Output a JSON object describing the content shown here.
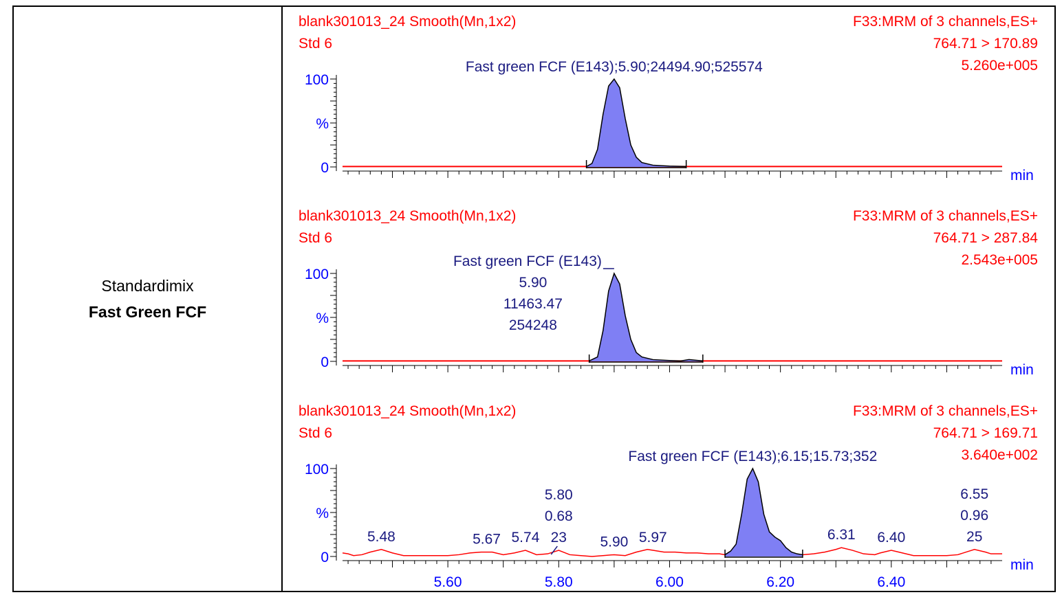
{
  "row_label": {
    "line1": "Standardimix",
    "line2": "Fast Green FCF"
  },
  "colors": {
    "header": "#ff0000",
    "axis": "#0000ff",
    "annotation": "#1a1a80",
    "trace": "#ff0000",
    "peak_fill": "#7f7ff4"
  },
  "chart_data": [
    {
      "type": "area",
      "sample": "blank301013_24 Smooth(Mn,1x2)",
      "sample_type": "Std 6",
      "function": "F33:MRM of 3 channels,ES+",
      "transition": "764.71 > 170.89",
      "intensity": "5.260e+005",
      "ylabel": "%",
      "xlabel": "min",
      "y_ticks": [
        "0",
        "100"
      ],
      "x_ticks": [],
      "xlim": [
        5.41,
        6.6
      ],
      "ylim": [
        0,
        100
      ],
      "baseline": 0.5,
      "peak": {
        "rt": 5.9,
        "start": 5.85,
        "end": 6.03,
        "x": [
          5.85,
          5.86,
          5.87,
          5.88,
          5.89,
          5.9,
          5.91,
          5.92,
          5.93,
          5.94,
          5.95,
          5.97,
          6.0,
          6.03
        ],
        "y": [
          0.5,
          4,
          20,
          60,
          92,
          100,
          90,
          55,
          25,
          11,
          5,
          2,
          1,
          0.5
        ]
      },
      "annotations": [
        {
          "x": 5.9,
          "lines": [
            "Fast green FCF (E143);5.90;24494.90;525574"
          ]
        }
      ]
    },
    {
      "type": "area",
      "sample": "blank301013_24 Smooth(Mn,1x2)",
      "sample_type": "Std 6",
      "function": "F33:MRM of 3 channels,ES+",
      "transition": "764.71 > 287.84",
      "intensity": "2.543e+005",
      "ylabel": "%",
      "xlabel": "min",
      "y_ticks": [
        "0",
        "100"
      ],
      "x_ticks": [],
      "xlim": [
        5.41,
        6.6
      ],
      "ylim": [
        0,
        100
      ],
      "baseline": 0.5,
      "peak": {
        "rt": 5.9,
        "start": 5.855,
        "end": 6.06,
        "x": [
          5.855,
          5.87,
          5.88,
          5.89,
          5.9,
          5.91,
          5.92,
          5.93,
          5.94,
          5.95,
          5.97,
          6.0,
          6.02,
          6.035,
          6.06
        ],
        "y": [
          0.5,
          5,
          35,
          80,
          100,
          88,
          52,
          25,
          10,
          5,
          2,
          1,
          0.5,
          2,
          0.5
        ]
      },
      "annotations": [
        {
          "x": 5.9,
          "lines": [
            "Fast green FCF (E143)",
            "5.90",
            "11463.47",
            "254248"
          ]
        }
      ]
    },
    {
      "type": "area",
      "sample": "blank301013_24 Smooth(Mn,1x2)",
      "sample_type": "Std 6",
      "function": "F33:MRM of 3 channels,ES+",
      "transition": "764.71 > 169.71",
      "intensity": "3.640e+002",
      "ylabel": "%",
      "xlabel": "min",
      "y_ticks": [
        "0",
        "100"
      ],
      "x_ticks": [
        "5.60",
        "5.80",
        "6.00",
        "6.20",
        "6.40"
      ],
      "xlim": [
        5.41,
        6.6
      ],
      "ylim": [
        0,
        100
      ],
      "noise": {
        "x": [
          5.41,
          5.42,
          5.43,
          5.445,
          5.46,
          5.48,
          5.5,
          5.52,
          5.54,
          5.56,
          5.58,
          5.6,
          5.62,
          5.64,
          5.66,
          5.67,
          5.68,
          5.7,
          5.72,
          5.74,
          5.76,
          5.78,
          5.8,
          5.82,
          5.84,
          5.86,
          5.88,
          5.9,
          5.92,
          5.94,
          5.96,
          5.97,
          5.99,
          6.01,
          6.03,
          6.05,
          6.07,
          6.09,
          6.1,
          6.24,
          6.26,
          6.28,
          6.3,
          6.31,
          6.33,
          6.35,
          6.37,
          6.38,
          6.4,
          6.42,
          6.44,
          6.46,
          6.48,
          6.5,
          6.52,
          6.54,
          6.55,
          6.57,
          6.58,
          6.6
        ],
        "y": [
          4,
          3,
          1,
          2,
          5,
          8,
          4,
          1,
          1,
          1,
          1,
          1,
          2,
          4,
          5,
          5,
          5,
          2,
          4,
          7,
          2,
          3,
          7,
          2,
          1,
          0,
          1,
          2,
          1,
          5,
          8,
          7,
          5,
          5,
          4,
          4,
          3,
          3,
          2,
          2,
          3,
          5,
          8,
          10,
          7,
          3,
          2,
          4,
          7,
          4,
          1,
          1,
          1,
          1,
          2,
          6,
          8,
          5,
          3,
          3
        ]
      },
      "peak": {
        "rt": 6.15,
        "start": 6.1,
        "end": 6.24,
        "x": [
          6.1,
          6.11,
          6.12,
          6.13,
          6.14,
          6.15,
          6.16,
          6.17,
          6.18,
          6.19,
          6.2,
          6.21,
          6.22,
          6.23,
          6.24
        ],
        "y": [
          2,
          6,
          14,
          48,
          88,
          100,
          85,
          48,
          28,
          22,
          18,
          10,
          5,
          3,
          2
        ]
      },
      "annotations": [
        {
          "x": 6.15,
          "lines": [
            "Fast green FCF (E143);6.15;15.73;352"
          ]
        },
        {
          "x": 5.48,
          "lines": [
            "5.48"
          ]
        },
        {
          "x": 5.67,
          "lines": [
            "5.67"
          ]
        },
        {
          "x": 5.74,
          "lines": [
            "5.74"
          ]
        },
        {
          "x": 5.8,
          "lines": [
            "5.80",
            "0.68",
            "23"
          ]
        },
        {
          "x": 5.9,
          "lines": [
            "5.90"
          ]
        },
        {
          "x": 5.97,
          "lines": [
            "5.97"
          ]
        },
        {
          "x": 6.31,
          "lines": [
            "6.31"
          ]
        },
        {
          "x": 6.4,
          "lines": [
            "6.40"
          ]
        },
        {
          "x": 6.55,
          "lines": [
            "6.55",
            "0.96",
            "25"
          ]
        }
      ]
    }
  ]
}
